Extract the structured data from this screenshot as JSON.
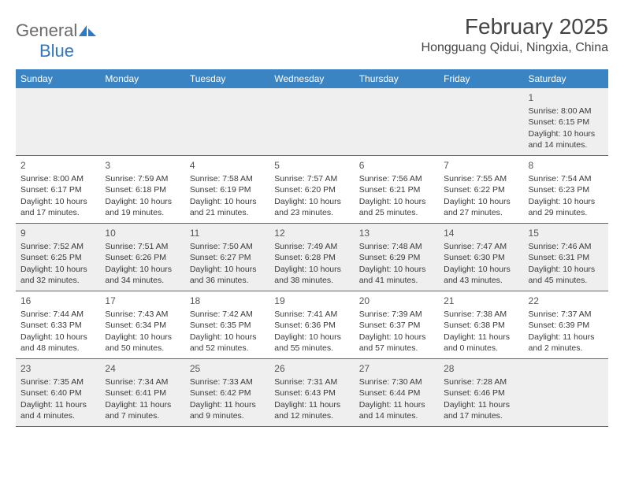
{
  "brand": {
    "part1": "General",
    "part2": "Blue"
  },
  "title": "February 2025",
  "location": "Hongguang Qidui, Ningxia, China",
  "colors": {
    "header_bar": "#3b84c4",
    "header_text": "#ffffff",
    "rule": "#3b6fa0",
    "alt_row": "#efefef",
    "text": "#3a3a3a",
    "brand_grey": "#6a6a6a",
    "brand_blue": "#2f78c2"
  },
  "typography": {
    "title_fontsize": 28,
    "location_fontsize": 16,
    "dow_fontsize": 12,
    "cell_fontsize": 10.5,
    "daynum_fontsize": 12
  },
  "days_of_week": [
    "Sunday",
    "Monday",
    "Tuesday",
    "Wednesday",
    "Thursday",
    "Friday",
    "Saturday"
  ],
  "first_weekday_index": 6,
  "days": [
    {
      "n": 1,
      "sunrise": "8:00 AM",
      "sunset": "6:15 PM",
      "daylight": "10 hours and 14 minutes."
    },
    {
      "n": 2,
      "sunrise": "8:00 AM",
      "sunset": "6:17 PM",
      "daylight": "10 hours and 17 minutes."
    },
    {
      "n": 3,
      "sunrise": "7:59 AM",
      "sunset": "6:18 PM",
      "daylight": "10 hours and 19 minutes."
    },
    {
      "n": 4,
      "sunrise": "7:58 AM",
      "sunset": "6:19 PM",
      "daylight": "10 hours and 21 minutes."
    },
    {
      "n": 5,
      "sunrise": "7:57 AM",
      "sunset": "6:20 PM",
      "daylight": "10 hours and 23 minutes."
    },
    {
      "n": 6,
      "sunrise": "7:56 AM",
      "sunset": "6:21 PM",
      "daylight": "10 hours and 25 minutes."
    },
    {
      "n": 7,
      "sunrise": "7:55 AM",
      "sunset": "6:22 PM",
      "daylight": "10 hours and 27 minutes."
    },
    {
      "n": 8,
      "sunrise": "7:54 AM",
      "sunset": "6:23 PM",
      "daylight": "10 hours and 29 minutes."
    },
    {
      "n": 9,
      "sunrise": "7:52 AM",
      "sunset": "6:25 PM",
      "daylight": "10 hours and 32 minutes."
    },
    {
      "n": 10,
      "sunrise": "7:51 AM",
      "sunset": "6:26 PM",
      "daylight": "10 hours and 34 minutes."
    },
    {
      "n": 11,
      "sunrise": "7:50 AM",
      "sunset": "6:27 PM",
      "daylight": "10 hours and 36 minutes."
    },
    {
      "n": 12,
      "sunrise": "7:49 AM",
      "sunset": "6:28 PM",
      "daylight": "10 hours and 38 minutes."
    },
    {
      "n": 13,
      "sunrise": "7:48 AM",
      "sunset": "6:29 PM",
      "daylight": "10 hours and 41 minutes."
    },
    {
      "n": 14,
      "sunrise": "7:47 AM",
      "sunset": "6:30 PM",
      "daylight": "10 hours and 43 minutes."
    },
    {
      "n": 15,
      "sunrise": "7:46 AM",
      "sunset": "6:31 PM",
      "daylight": "10 hours and 45 minutes."
    },
    {
      "n": 16,
      "sunrise": "7:44 AM",
      "sunset": "6:33 PM",
      "daylight": "10 hours and 48 minutes."
    },
    {
      "n": 17,
      "sunrise": "7:43 AM",
      "sunset": "6:34 PM",
      "daylight": "10 hours and 50 minutes."
    },
    {
      "n": 18,
      "sunrise": "7:42 AM",
      "sunset": "6:35 PM",
      "daylight": "10 hours and 52 minutes."
    },
    {
      "n": 19,
      "sunrise": "7:41 AM",
      "sunset": "6:36 PM",
      "daylight": "10 hours and 55 minutes."
    },
    {
      "n": 20,
      "sunrise": "7:39 AM",
      "sunset": "6:37 PM",
      "daylight": "10 hours and 57 minutes."
    },
    {
      "n": 21,
      "sunrise": "7:38 AM",
      "sunset": "6:38 PM",
      "daylight": "11 hours and 0 minutes."
    },
    {
      "n": 22,
      "sunrise": "7:37 AM",
      "sunset": "6:39 PM",
      "daylight": "11 hours and 2 minutes."
    },
    {
      "n": 23,
      "sunrise": "7:35 AM",
      "sunset": "6:40 PM",
      "daylight": "11 hours and 4 minutes."
    },
    {
      "n": 24,
      "sunrise": "7:34 AM",
      "sunset": "6:41 PM",
      "daylight": "11 hours and 7 minutes."
    },
    {
      "n": 25,
      "sunrise": "7:33 AM",
      "sunset": "6:42 PM",
      "daylight": "11 hours and 9 minutes."
    },
    {
      "n": 26,
      "sunrise": "7:31 AM",
      "sunset": "6:43 PM",
      "daylight": "11 hours and 12 minutes."
    },
    {
      "n": 27,
      "sunrise": "7:30 AM",
      "sunset": "6:44 PM",
      "daylight": "11 hours and 14 minutes."
    },
    {
      "n": 28,
      "sunrise": "7:28 AM",
      "sunset": "6:46 PM",
      "daylight": "11 hours and 17 minutes."
    }
  ],
  "labels": {
    "sunrise": "Sunrise:",
    "sunset": "Sunset:",
    "daylight": "Daylight:"
  }
}
